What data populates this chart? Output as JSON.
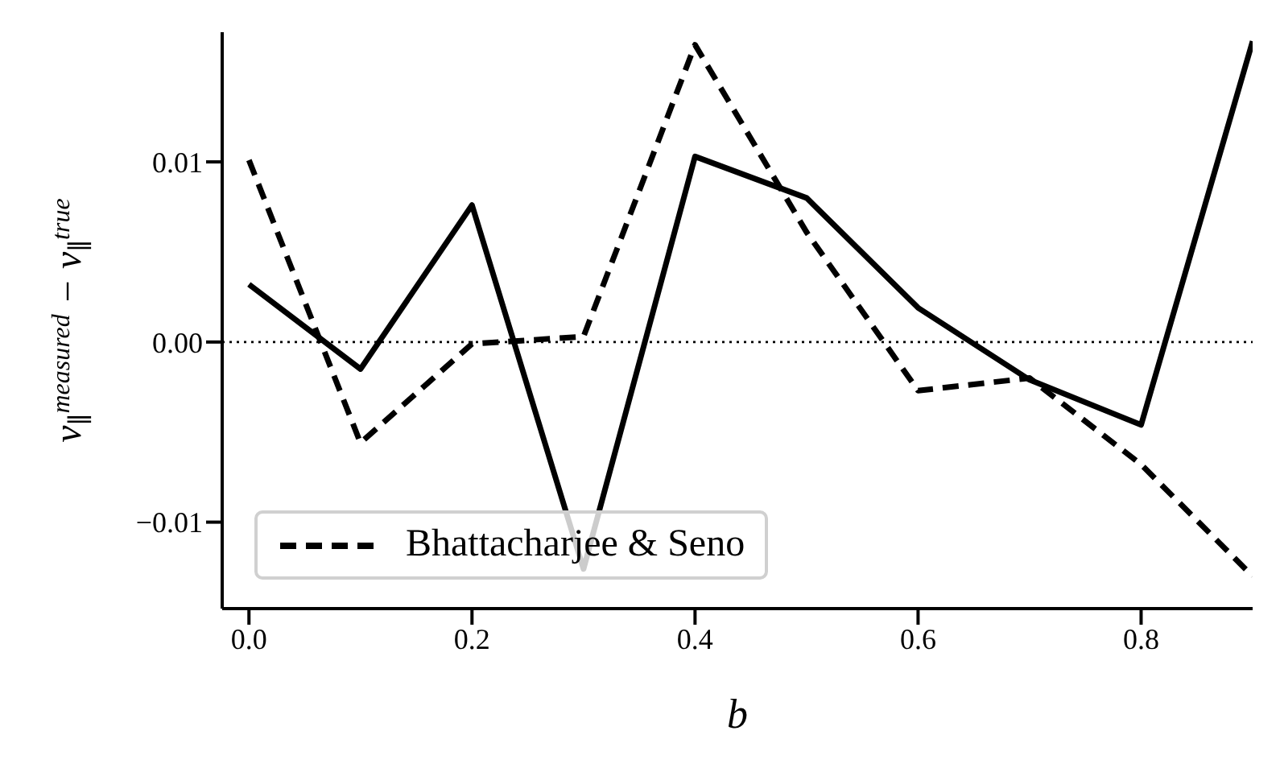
{
  "chart_data": {
    "type": "line",
    "xlabel": "b",
    "ylabel": "ν$_{∥}$$^{measured}$ − ν$_{∥}$$^{true}$",
    "x": [
      0.0,
      0.1,
      0.2,
      0.3,
      0.4,
      0.5,
      0.6,
      0.7,
      0.8,
      0.9
    ],
    "series": [
      {
        "color": "#000000",
        "line_style": "solid",
        "values": [
          0.0032,
          -0.0015,
          0.0076,
          -0.0126,
          0.0103,
          0.008,
          0.0019,
          -0.0021,
          -0.0046,
          0.0167
        ]
      },
      {
        "name": "Bhattacharjee & Seno",
        "color": "#000000",
        "line_style": "dashed",
        "values": [
          0.0101,
          -0.0056,
          -0.0001,
          0.0003,
          0.0165,
          0.0061,
          -0.0027,
          -0.002,
          -0.0068,
          -0.013
        ]
      }
    ],
    "xlim": [
      -0.024,
      0.9
    ],
    "xticks": [
      {
        "value": 0,
        "label": "0.0"
      },
      0.2,
      0.4,
      0.6,
      0.8
    ],
    "ylim": [
      -0.0148,
      0.0172
    ],
    "yticks": [
      {
        "value": -0.01,
        "label": "−0.01"
      },
      {
        "value": 0,
        "label": "0.00"
      },
      0.01
    ],
    "ref_lines": [
      {
        "axis": "y",
        "value": 0,
        "color": "#000000",
        "line_style": "dotted"
      }
    ],
    "grid": false,
    "legend": "bottom left",
    "marker": "none"
  }
}
